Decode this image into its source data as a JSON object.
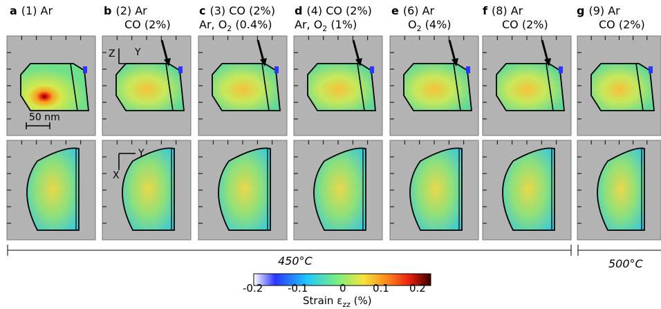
{
  "columns": [
    {
      "letter": "a",
      "line1": "(1) Ar",
      "line2": ""
    },
    {
      "letter": "b",
      "line1": "(2) Ar",
      "line2": "CO (2%)"
    },
    {
      "letter": "c",
      "line1": "(3) CO (2%)",
      "line2": "Ar, O2 (0.4%)"
    },
    {
      "letter": "d",
      "line1": "(4) CO (2%)",
      "line2": "Ar, O2 (1%)"
    },
    {
      "letter": "e",
      "line1": "(6) Ar",
      "line2": "O2 (4%)"
    },
    {
      "letter": "f",
      "line1": "(8) Ar",
      "line2": "CO (2%)"
    },
    {
      "letter": "g",
      "line1": "(9) Ar",
      "line2": "CO (2%)"
    }
  ],
  "scale_bar_label": "50 nm",
  "axes_top": {
    "vertical": "Z",
    "horizontal": "Y"
  },
  "axes_bottom": {
    "vertical": "X",
    "horizontal": "Y"
  },
  "temperatures": [
    {
      "label": "450°C",
      "columns": "a-f"
    },
    {
      "label": "500°C",
      "columns": "g"
    }
  ],
  "colorbar": {
    "ticks": [
      "-0.2",
      "-0.1",
      "0",
      "0.1",
      "0.2"
    ],
    "min": -0.2,
    "max": 0.2,
    "label": "Strain εzz (%)",
    "colormap": [
      "#ffffff",
      "#2a36ff",
      "#1ec8ff",
      "#7ef07a",
      "#f5e23a",
      "#ff8a1e",
      "#e8200e",
      "#4a0000"
    ]
  },
  "colors": {
    "background": "#b3b3b3",
    "particle_base": "#6fe08a",
    "outline": "#000000"
  }
}
